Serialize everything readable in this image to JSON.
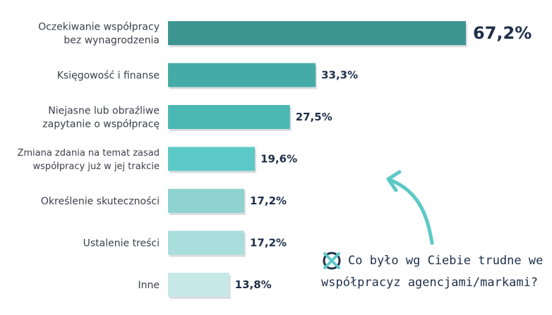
{
  "colors": {
    "bars": [
      "#3d9592",
      "#44aba7",
      "#4ab7b3",
      "#5dc9c6",
      "#8fd3d1",
      "#a9dedc",
      "#c6e8e7"
    ],
    "value_text": "#1f2f4a",
    "label_text": "#3a3f4a",
    "arrow": "#5dc9c6"
  },
  "chart_data": {
    "type": "bar",
    "orientation": "horizontal",
    "categories": [
      "Oczekiwanie współpracy bez wynagrodzenia",
      "Księgowość i finanse",
      "Niejasne lub obraźliwe zapytanie o współpracę",
      "Zmiana zdania na temat zasad współpracy już w jej trakcie",
      "Określenie skuteczności",
      "Ustalenie treści",
      "Inne"
    ],
    "category_lines": [
      [
        "Oczekiwanie współpracy",
        "bez wynagrodzenia"
      ],
      [
        "Księgowość i finanse"
      ],
      [
        "Niejasne lub obraźliwe",
        "zapytanie o współpracę"
      ],
      [
        "Zmiana zdania na temat zasad",
        "współpracy już w jej trakcie"
      ],
      [
        "Określenie skuteczności"
      ],
      [
        "Ustalenie treści"
      ],
      [
        "Inne"
      ]
    ],
    "values": [
      67.2,
      33.3,
      27.5,
      19.6,
      17.2,
      17.2,
      13.8
    ],
    "value_labels": [
      "67,2%",
      "33,3%",
      "27,5%",
      "19,6%",
      "17,2%",
      "17,2%",
      "13,8%"
    ],
    "xlim": [
      0,
      67.2
    ],
    "grid": false
  },
  "question": {
    "line1": "Co było wg Ciebie trudne we",
    "line2": "współpracyz agencjami/markami?",
    "icon": "x-circle-icon"
  }
}
